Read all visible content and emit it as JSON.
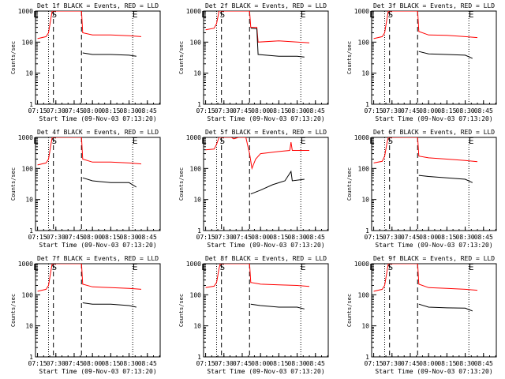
{
  "figure": {
    "xlabel": "Start Time (09-Nov-03 07:13:20)",
    "ylabel": "Counts/sec",
    "x_tick_labels": [
      "07:15",
      "07:30",
      "07:45",
      "08:00",
      "08:15",
      "08:30",
      "08:45"
    ],
    "y_tick_labels": [
      "1",
      "10",
      "100",
      "1000"
    ],
    "series_colors": {
      "events": "#000000",
      "lld": "#ff0000"
    }
  },
  "chart_data": [
    {
      "type": "line",
      "title": "Det 1f BLACK = Events, RED = LLD",
      "xlabel": "Start Time (09-Nov-03 07:13:20)",
      "ylabel": "Counts/sec",
      "yscale": "log",
      "ylim": [
        1,
        1000
      ],
      "xticks": [
        "07:15",
        "07:30",
        "07:45",
        "08:00",
        "08:15",
        "08:30",
        "08:45"
      ],
      "markers": {
        "S": "07:30",
        "E_left": "07:15",
        "E_right": "08:33"
      },
      "dashed_lines": [
        "07:28",
        "07:51"
      ],
      "dotted_lines": [
        "07:24",
        "08:33"
      ],
      "series": [
        {
          "color": "#ff0000",
          "points": [
            [
              "07:15",
              130
            ],
            [
              "07:22",
              150
            ],
            [
              "07:24",
              200
            ],
            [
              "07:26",
              600
            ],
            [
              "07:27",
              1000
            ],
            [
              "07:51",
              1000
            ],
            [
              "07:52",
              200
            ],
            [
              "08:00",
              170
            ],
            [
              "08:15",
              170
            ],
            [
              "08:30",
              160
            ],
            [
              "08:40",
              150
            ]
          ]
        },
        {
          "color": "#000000",
          "points": [
            [
              "07:52",
              45
            ],
            [
              "08:00",
              40
            ],
            [
              "08:15",
              40
            ],
            [
              "08:30",
              38
            ],
            [
              "08:36",
              35
            ]
          ]
        }
      ]
    },
    {
      "type": "line",
      "title": "Det 2f BLACK = Events, RED = LLD",
      "xlabel": "Start Time (09-Nov-03 07:13:20)",
      "ylabel": "Counts/sec",
      "yscale": "log",
      "ylim": [
        1,
        1000
      ],
      "xticks": [
        "07:15",
        "07:30",
        "07:45",
        "08:00",
        "08:15",
        "08:30",
        "08:45"
      ],
      "markers": {
        "S": "07:30",
        "E_left": "07:15",
        "E_right": "08:33"
      },
      "dashed_lines": [
        "07:28",
        "07:51"
      ],
      "dotted_lines": [
        "07:24",
        "08:33"
      ],
      "series": [
        {
          "color": "#ff0000",
          "points": [
            [
              "07:15",
              250
            ],
            [
              "07:22",
              280
            ],
            [
              "07:24",
              400
            ],
            [
              "07:26",
              1000
            ],
            [
              "07:51",
              1000
            ],
            [
              "07:52",
              300
            ],
            [
              "07:57",
              300
            ],
            [
              "07:58",
              100
            ],
            [
              "08:15",
              110
            ],
            [
              "08:30",
              100
            ],
            [
              "08:40",
              95
            ]
          ]
        },
        {
          "color": "#000000",
          "points": [
            [
              "07:52",
              280
            ],
            [
              "07:57",
              270
            ],
            [
              "07:58",
              40
            ],
            [
              "08:15",
              35
            ],
            [
              "08:30",
              35
            ],
            [
              "08:36",
              33
            ]
          ]
        }
      ]
    },
    {
      "type": "line",
      "title": "Det 3f BLACK = Events, RED = LLD",
      "xlabel": "Start Time (09-Nov-03 07:13:20)",
      "ylabel": "Counts/sec",
      "yscale": "log",
      "ylim": [
        1,
        1000
      ],
      "xticks": [
        "07:15",
        "07:30",
        "07:45",
        "08:00",
        "08:15",
        "08:30",
        "08:45"
      ],
      "markers": {
        "S": "07:30",
        "E_left": "07:15",
        "E_right": "08:33"
      },
      "dashed_lines": [
        "07:28",
        "07:51"
      ],
      "dotted_lines": [
        "07:24",
        "08:33"
      ],
      "series": [
        {
          "color": "#ff0000",
          "points": [
            [
              "07:15",
              130
            ],
            [
              "07:22",
              150
            ],
            [
              "07:24",
              200
            ],
            [
              "07:26",
              600
            ],
            [
              "07:27",
              1000
            ],
            [
              "07:51",
              1000
            ],
            [
              "07:52",
              220
            ],
            [
              "08:00",
              170
            ],
            [
              "08:15",
              165
            ],
            [
              "08:30",
              150
            ],
            [
              "08:40",
              140
            ]
          ]
        },
        {
          "color": "#000000",
          "points": [
            [
              "07:52",
              50
            ],
            [
              "08:00",
              42
            ],
            [
              "08:15",
              40
            ],
            [
              "08:30",
              38
            ],
            [
              "08:36",
              30
            ]
          ]
        }
      ]
    },
    {
      "type": "line",
      "title": "Det 4f BLACK = Events, RED = LLD",
      "xlabel": "Start Time (09-Nov-03 07:13:20)",
      "ylabel": "Counts/sec",
      "yscale": "log",
      "ylim": [
        1,
        1000
      ],
      "xticks": [
        "07:15",
        "07:30",
        "07:45",
        "08:00",
        "08:15",
        "08:30",
        "08:45"
      ],
      "markers": {
        "S": "07:30",
        "E_left": "07:15",
        "E_right": "08:33"
      },
      "dashed_lines": [
        "07:28",
        "07:51"
      ],
      "dotted_lines": [
        "07:24",
        "08:33"
      ],
      "series": [
        {
          "color": "#ff0000",
          "points": [
            [
              "07:15",
              130
            ],
            [
              "07:22",
              150
            ],
            [
              "07:24",
              200
            ],
            [
              "07:26",
              600
            ],
            [
              "07:27",
              1000
            ],
            [
              "07:51",
              1000
            ],
            [
              "07:52",
              200
            ],
            [
              "08:00",
              160
            ],
            [
              "08:15",
              160
            ],
            [
              "08:30",
              150
            ],
            [
              "08:40",
              140
            ]
          ]
        },
        {
          "color": "#000000",
          "points": [
            [
              "07:52",
              50
            ],
            [
              "08:00",
              40
            ],
            [
              "08:15",
              35
            ],
            [
              "08:30",
              35
            ],
            [
              "08:36",
              25
            ]
          ]
        }
      ]
    },
    {
      "type": "line",
      "title": "Det 5f BLACK = Events, RED = LLD",
      "xlabel": "Start Time (09-Nov-03 07:13:20)",
      "ylabel": "Counts/sec",
      "yscale": "log",
      "ylim": [
        1,
        1000
      ],
      "xticks": [
        "07:15",
        "07:30",
        "07:45",
        "08:00",
        "08:15",
        "08:30",
        "08:45"
      ],
      "markers": {
        "S": "07:30",
        "E_left": "07:15",
        "E_right": "08:33"
      },
      "dashed_lines": [
        "07:28",
        "07:51"
      ],
      "dotted_lines": [
        "07:24",
        "08:33"
      ],
      "series": [
        {
          "color": "#ff0000",
          "points": [
            [
              "07:15",
              400
            ],
            [
              "07:22",
              420
            ],
            [
              "07:24",
              600
            ],
            [
              "07:26",
              1000
            ],
            [
              "07:36",
              1000
            ],
            [
              "07:38",
              900
            ],
            [
              "07:42",
              1000
            ],
            [
              "07:48",
              1000
            ],
            [
              "07:51",
              300
            ],
            [
              "07:53",
              100
            ],
            [
              "07:56",
              200
            ],
            [
              "08:00",
              300
            ],
            [
              "08:15",
              350
            ],
            [
              "08:24",
              380
            ],
            [
              "08:25",
              700
            ],
            [
              "08:26",
              380
            ],
            [
              "08:40",
              380
            ]
          ]
        },
        {
          "color": "#000000",
          "points": [
            [
              "07:52",
              15
            ],
            [
              "08:00",
              20
            ],
            [
              "08:10",
              30
            ],
            [
              "08:20",
              40
            ],
            [
              "08:25",
              80
            ],
            [
              "08:26",
              40
            ],
            [
              "08:36",
              45
            ]
          ]
        }
      ]
    },
    {
      "type": "line",
      "title": "Det 6f BLACK = Events, RED = LLD",
      "xlabel": "Start Time (09-Nov-03 07:13:20)",
      "ylabel": "Counts/sec",
      "yscale": "log",
      "ylim": [
        1,
        1000
      ],
      "xticks": [
        "07:15",
        "07:30",
        "07:45",
        "08:00",
        "08:15",
        "08:30",
        "08:45"
      ],
      "markers": {
        "S": "07:30",
        "E_left": "07:15",
        "E_right": "08:33"
      },
      "dashed_lines": [
        "07:28",
        "07:51"
      ],
      "dotted_lines": [
        "07:24",
        "08:33"
      ],
      "series": [
        {
          "color": "#ff0000",
          "points": [
            [
              "07:15",
              150
            ],
            [
              "07:22",
              170
            ],
            [
              "07:24",
              250
            ],
            [
              "07:26",
              700
            ],
            [
              "07:27",
              1000
            ],
            [
              "07:51",
              1000
            ],
            [
              "07:52",
              250
            ],
            [
              "08:00",
              220
            ],
            [
              "08:15",
              200
            ],
            [
              "08:30",
              180
            ],
            [
              "08:40",
              165
            ]
          ]
        },
        {
          "color": "#000000",
          "points": [
            [
              "07:52",
              60
            ],
            [
              "08:00",
              55
            ],
            [
              "08:15",
              50
            ],
            [
              "08:30",
              45
            ],
            [
              "08:36",
              35
            ]
          ]
        }
      ]
    },
    {
      "type": "line",
      "title": "Det 7f BLACK = Events, RED = LLD",
      "xlabel": "Start Time (09-Nov-03 07:13:20)",
      "ylabel": "Counts/sec",
      "yscale": "log",
      "ylim": [
        1,
        1000
      ],
      "xticks": [
        "07:15",
        "07:30",
        "07:45",
        "08:00",
        "08:15",
        "08:30",
        "08:45"
      ],
      "markers": {
        "S": "07:30",
        "E_left": "07:15",
        "E_right": "08:33"
      },
      "dashed_lines": [
        "07:28",
        "07:51"
      ],
      "dotted_lines": [
        "07:24",
        "08:33"
      ],
      "series": [
        {
          "color": "#ff0000",
          "points": [
            [
              "07:15",
              130
            ],
            [
              "07:22",
              150
            ],
            [
              "07:24",
              200
            ],
            [
              "07:26",
              600
            ],
            [
              "07:27",
              1000
            ],
            [
              "07:51",
              1000
            ],
            [
              "07:52",
              220
            ],
            [
              "08:00",
              180
            ],
            [
              "08:15",
              170
            ],
            [
              "08:30",
              160
            ],
            [
              "08:40",
              150
            ]
          ]
        },
        {
          "color": "#000000",
          "points": [
            [
              "07:52",
              55
            ],
            [
              "08:00",
              50
            ],
            [
              "08:15",
              50
            ],
            [
              "08:30",
              45
            ],
            [
              "08:36",
              40
            ]
          ]
        }
      ]
    },
    {
      "type": "line",
      "title": "Det 8f BLACK = Events, RED = LLD",
      "xlabel": "Start Time (09-Nov-03 07:13:20)",
      "ylabel": "Counts/sec",
      "yscale": "log",
      "ylim": [
        1,
        1000
      ],
      "xticks": [
        "07:15",
        "07:30",
        "07:45",
        "08:00",
        "08:15",
        "08:30",
        "08:45"
      ],
      "markers": {
        "S": "07:30",
        "E_left": "07:15",
        "E_right": "08:33"
      },
      "dashed_lines": [
        "07:28",
        "07:51"
      ],
      "dotted_lines": [
        "07:24",
        "08:33"
      ],
      "series": [
        {
          "color": "#ff0000",
          "points": [
            [
              "07:15",
              170
            ],
            [
              "07:22",
              190
            ],
            [
              "07:24",
              250
            ],
            [
              "07:26",
              700
            ],
            [
              "07:27",
              1000
            ],
            [
              "07:51",
              1000
            ],
            [
              "07:52",
              250
            ],
            [
              "08:00",
              220
            ],
            [
              "08:15",
              210
            ],
            [
              "08:30",
              200
            ],
            [
              "08:40",
              185
            ]
          ]
        },
        {
          "color": "#000000",
          "points": [
            [
              "07:52",
              50
            ],
            [
              "08:00",
              45
            ],
            [
              "08:15",
              40
            ],
            [
              "08:30",
              40
            ],
            [
              "08:36",
              35
            ]
          ]
        }
      ]
    },
    {
      "type": "line",
      "title": "Det 9f BLACK = Events, RED = LLD",
      "xlabel": "Start Time (09-Nov-03 07:13:20)",
      "ylabel": "Counts/sec",
      "yscale": "log",
      "ylim": [
        1,
        1000
      ],
      "xticks": [
        "07:15",
        "07:30",
        "07:45",
        "08:00",
        "08:15",
        "08:30",
        "08:45"
      ],
      "markers": {
        "S": "07:30",
        "E_left": "07:15",
        "E_right": "08:33"
      },
      "dashed_lines": [
        "07:28",
        "07:51"
      ],
      "dotted_lines": [
        "07:24",
        "08:33"
      ],
      "series": [
        {
          "color": "#ff0000",
          "points": [
            [
              "07:15",
              130
            ],
            [
              "07:22",
              150
            ],
            [
              "07:24",
              200
            ],
            [
              "07:26",
              600
            ],
            [
              "07:27",
              1000
            ],
            [
              "07:51",
              1000
            ],
            [
              "07:52",
              220
            ],
            [
              "08:00",
              170
            ],
            [
              "08:15",
              160
            ],
            [
              "08:30",
              150
            ],
            [
              "08:40",
              140
            ]
          ]
        },
        {
          "color": "#000000",
          "points": [
            [
              "07:52",
              50
            ],
            [
              "08:00",
              40
            ],
            [
              "08:15",
              38
            ],
            [
              "08:30",
              37
            ],
            [
              "08:36",
              30
            ]
          ]
        }
      ]
    }
  ]
}
